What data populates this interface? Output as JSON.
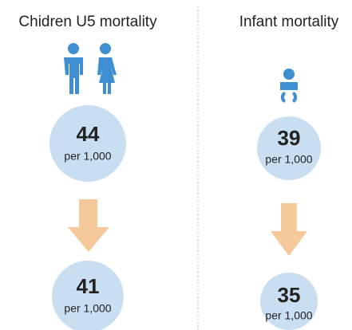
{
  "columns": [
    {
      "title": "Chidren U5 mortality",
      "before": {
        "value": 44,
        "unit": "per 1,000"
      },
      "after": {
        "value": 41,
        "unit": "per 1,000"
      }
    },
    {
      "title": "Infant mortality",
      "before": {
        "value": 39,
        "unit": "per 1,000"
      },
      "after": {
        "value": 35,
        "unit": "per 1,000"
      }
    }
  ]
}
